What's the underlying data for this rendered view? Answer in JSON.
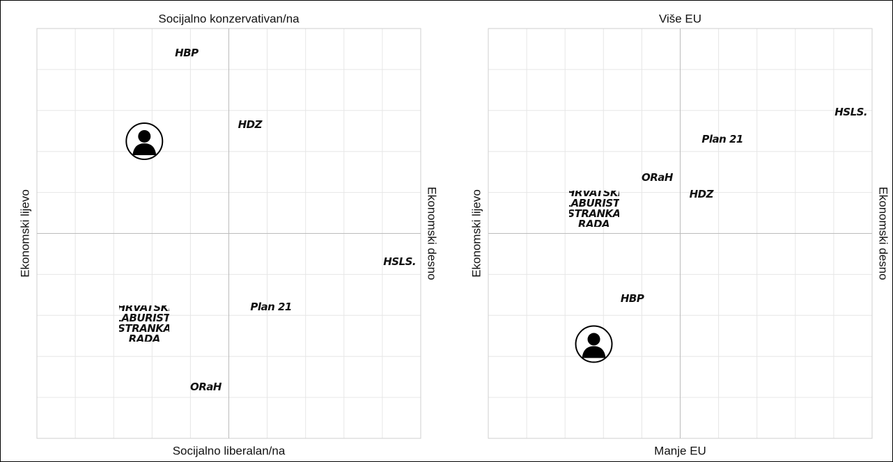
{
  "chart_data": [
    {
      "type": "scatter",
      "top_label": "Socijalno konzervativan/na",
      "bottom_label": "Socijalno liberalan/na",
      "left_label": "Ekonomski lijevo",
      "right_label": "Ekonomski desno",
      "labels": [
        "HBP",
        null,
        "HDZ",
        "HSLS.",
        "Plan 21",
        "HRVATSKI LABURISTI STRANKA RADA",
        "ORaH"
      ],
      "x": [
        -2.2,
        -4.4,
        1.1,
        8.9,
        2.2,
        -4.4,
        -1.2
      ],
      "values": [
        8.8,
        4.5,
        5.3,
        -1.4,
        -3.6,
        -4.4,
        -7.5
      ],
      "xlim": [
        -10,
        10
      ],
      "ylim": [
        -10,
        10
      ],
      "xticks": [
        -10,
        -8,
        -6,
        -4,
        -2,
        0,
        2,
        4,
        6,
        8,
        10
      ],
      "yticks": [
        -10,
        -8,
        -6,
        -4,
        -2,
        0,
        2,
        4,
        6,
        8,
        10
      ],
      "grid": true
    },
    {
      "type": "scatter",
      "top_label": "Više EU",
      "bottom_label": "Manje EU",
      "left_label": "Ekonomski lijevo",
      "right_label": "Ekonomski desno",
      "labels": [
        "HSLS.",
        "Plan 21",
        "ORaH",
        "HDZ",
        "HRVATSKI LABURISTI STRANKA RADA",
        "HBP",
        null
      ],
      "x": [
        8.9,
        2.2,
        -1.2,
        1.1,
        -4.5,
        -2.5,
        -4.5
      ],
      "values": [
        5.9,
        4.6,
        2.7,
        1.9,
        1.2,
        -3.2,
        -5.4
      ],
      "xlim": [
        -10,
        10
      ],
      "ylim": [
        -10,
        10
      ],
      "xticks": [
        -10,
        -8,
        -6,
        -4,
        -2,
        0,
        2,
        4,
        6,
        8,
        10
      ],
      "yticks": [
        -10,
        -8,
        -6,
        -4,
        -2,
        0,
        2,
        4,
        6,
        8,
        10
      ],
      "grid": true
    }
  ]
}
